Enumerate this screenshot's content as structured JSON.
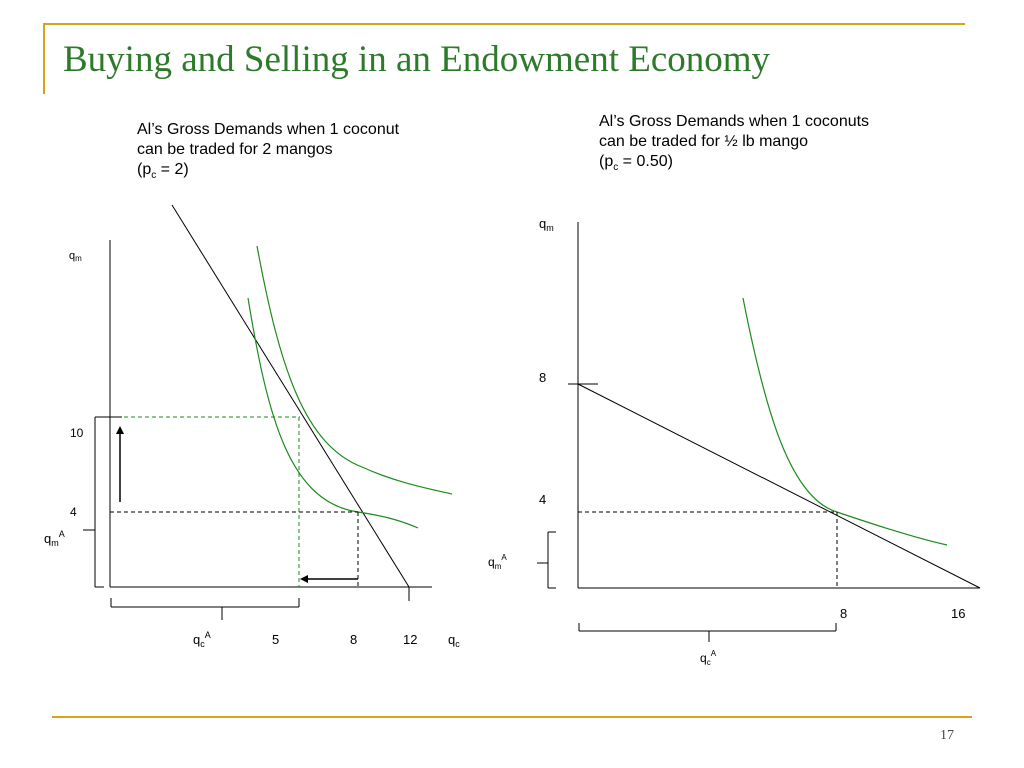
{
  "slide": {
    "title": "Buying and Selling in an Endowment Economy",
    "page_number": "17",
    "accent_color": "#d9a21b",
    "title_color": "#2d7a2b"
  },
  "left_panel": {
    "caption": {
      "line1": "Al’s Gross Demands when 1 coconut",
      "line2": "can be traded for 2 mangos",
      "line3_prefix": "(p",
      "line3_sub": "c",
      "line3_suffix": " = 2)"
    },
    "labels": {
      "y_axis": "q",
      "y_axis_sub": "m",
      "x_axis": "q",
      "x_axis_sub": "c",
      "tick_10": "10",
      "tick_4": "4",
      "qmA_base": "q",
      "qmA_sub": "m",
      "qmA_sup": "A",
      "qcA_base": "q",
      "qcA_sub": "c",
      "qcA_sup": "A",
      "tick_5": "5",
      "tick_8": "8",
      "tick_12": "12"
    }
  },
  "right_panel": {
    "caption": {
      "line1": "Al’s Gross Demands when 1 coconuts",
      "line2": "can be traded for ½ lb mango",
      "line3_prefix": "(p",
      "line3_sub": "c",
      "line3_suffix": " = 0.50)"
    },
    "labels": {
      "y_axis": "q",
      "y_axis_sub": "m",
      "tick_8_y": "8",
      "tick_4": "4",
      "qmA_base": "q",
      "qmA_sub": "m",
      "qmA_sup": "A",
      "tick_8_x": "8",
      "tick_16": "16",
      "qcA_base": "q",
      "qcA_sub": "c",
      "qcA_sup": "A"
    }
  },
  "colors": {
    "curve": "#1f8a1f",
    "line": "#000000"
  }
}
